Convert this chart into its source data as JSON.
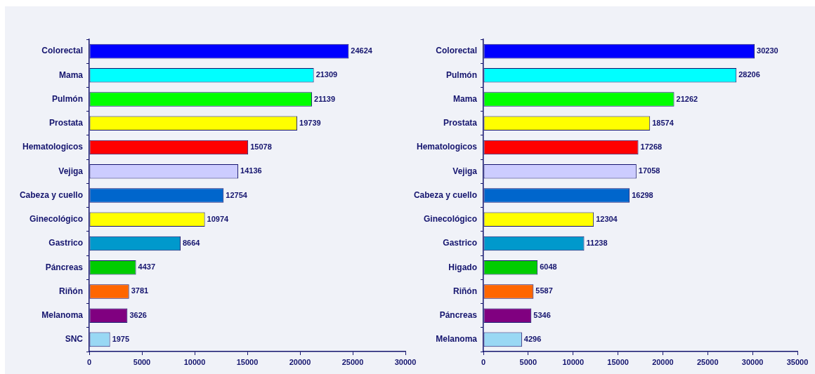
{
  "chart_data": [
    {
      "type": "bar",
      "orientation": "horizontal",
      "categories": [
        "Colorectal",
        "Mama",
        "Pulmón",
        "Prostata",
        "Hematologicos",
        "Vejiga",
        "Cabeza y cuello",
        "Ginecológico",
        "Gastrico",
        "Páncreas",
        "Riñón",
        "Melanoma",
        "SNC"
      ],
      "values": [
        24624,
        21309,
        21139,
        19739,
        15078,
        14136,
        12754,
        10974,
        8664,
        4437,
        3781,
        3626,
        1975
      ],
      "colors": [
        "#0000ff",
        "#00ffff",
        "#00ff00",
        "#ffff00",
        "#ff0000",
        "#ccccff",
        "#0066cc",
        "#ffff00",
        "#0099cc",
        "#00cc00",
        "#ff6600",
        "#800080",
        "#99d8f4"
      ],
      "xlim": [
        0,
        30000
      ],
      "xticks": [
        0,
        5000,
        10000,
        15000,
        20000,
        25000,
        30000
      ],
      "data_labels": true,
      "grid": false
    },
    {
      "type": "bar",
      "orientation": "horizontal",
      "categories": [
        "Colorectal",
        "Pulmón",
        "Mama",
        "Prostata",
        "Hematologicos",
        "Vejiga",
        "Cabeza y cuello",
        "Ginecológico",
        "Gastrico",
        "Higado",
        "Riñón",
        "Páncreas",
        "Melanoma"
      ],
      "values": [
        30230,
        28206,
        21262,
        18574,
        17268,
        17058,
        16298,
        12304,
        11238,
        6048,
        5587,
        5346,
        4296
      ],
      "colors": [
        "#0000ff",
        "#00ffff",
        "#00ff00",
        "#ffff00",
        "#ff0000",
        "#ccccff",
        "#0066cc",
        "#ffff00",
        "#0099cc",
        "#00cc00",
        "#ff6600",
        "#800080",
        "#99d8f4"
      ],
      "xlim": [
        0,
        35000
      ],
      "xticks": [
        0,
        5000,
        10000,
        15000,
        20000,
        25000,
        30000,
        35000
      ],
      "data_labels": true,
      "grid": false
    }
  ]
}
